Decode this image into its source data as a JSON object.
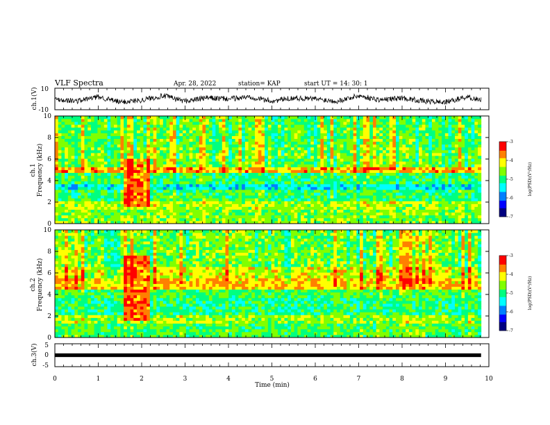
{
  "header": {
    "title": "VLF Spectra",
    "date": "Apr. 28, 2022",
    "station": "station= KAP",
    "start_ut": "start  UT  =   14: 30: 1"
  },
  "colormap": [
    "#000080",
    "#0000ff",
    "#0080ff",
    "#00ffff",
    "#00ff80",
    "#80ff00",
    "#ffff00",
    "#ff8000",
    "#ff0000",
    "#ffffff"
  ],
  "chart_data": [
    {
      "type": "line",
      "id": "ch1-waveform",
      "ylabel": "ch.1(V)",
      "ylim": [
        -10,
        10
      ],
      "yticks": [
        "10",
        "-10"
      ],
      "xlim": [
        0,
        10
      ],
      "x": [
        0,
        0.5,
        1,
        1.5,
        2,
        2.5,
        3,
        3.5,
        4,
        4.5,
        5,
        5.5,
        6,
        6.5,
        7,
        7.5,
        8,
        8.5,
        9,
        9.5,
        9.82
      ],
      "y": [
        0,
        -2,
        2,
        -3,
        -1,
        3,
        -2,
        1,
        0,
        2,
        -2,
        1,
        0,
        -2,
        3,
        -1,
        1,
        -2,
        -3,
        2,
        -1
      ],
      "color": "#000000"
    },
    {
      "type": "heatmap",
      "id": "ch1-spectrogram",
      "ylabel": "Frequency (kHz)",
      "channel": "ch.1",
      "ylim": [
        0,
        10
      ],
      "yticks": [
        "0",
        "2",
        "4",
        "6",
        "8",
        "10"
      ],
      "xlim": [
        0,
        10
      ],
      "data_xmax": 9.82,
      "bands": [
        {
          "from": 0,
          "to": 1.2,
          "level": -4.6
        },
        {
          "from": 1.2,
          "to": 2.2,
          "level": -4.4
        },
        {
          "from": 2.2,
          "to": 3.1,
          "level": -4.9
        },
        {
          "from": 3.1,
          "to": 3.6,
          "level": -5.4
        },
        {
          "from": 3.6,
          "to": 4.7,
          "level": -4.9
        },
        {
          "from": 4.7,
          "to": 5.3,
          "level": -3.8
        },
        {
          "from": 5.3,
          "to": 7,
          "level": -4.6
        },
        {
          "from": 7,
          "to": 10,
          "level": -4.7
        }
      ],
      "events": [
        {
          "t0": 1.55,
          "t1": 2.18,
          "f0": 1.6,
          "f1": 6.0,
          "level": -3.6
        }
      ],
      "colorbar": {
        "label": "log(PSD)(V²/Hz)",
        "range": [
          -7,
          -3
        ],
        "ticks": [
          "-3",
          "-4",
          "-5",
          "-6",
          "-7"
        ]
      }
    },
    {
      "type": "heatmap",
      "id": "ch2-spectrogram",
      "ylabel": "Frequency (kHz)",
      "channel": "ch.2",
      "ylim": [
        0,
        10
      ],
      "yticks": [
        "0",
        "2",
        "4",
        "6",
        "8",
        "10"
      ],
      "xlim": [
        0,
        10
      ],
      "data_xmax": 9.82,
      "bands": [
        {
          "from": 0,
          "to": 1.3,
          "level": -4.8
        },
        {
          "from": 1.3,
          "to": 2.2,
          "level": -4.5
        },
        {
          "from": 2.2,
          "to": 3.6,
          "level": -5.0
        },
        {
          "from": 3.6,
          "to": 4.6,
          "level": -4.8
        },
        {
          "from": 4.6,
          "to": 5.5,
          "level": -3.9
        },
        {
          "from": 5.5,
          "to": 6.6,
          "level": -4.2
        },
        {
          "from": 6.6,
          "to": 10,
          "level": -4.6
        }
      ],
      "events": [
        {
          "t0": 1.55,
          "t1": 2.18,
          "f0": 1.6,
          "f1": 7.5,
          "level": -3.6
        }
      ],
      "colorbar": {
        "label": "log(PSD)(V²/Hz)",
        "range": [
          -7,
          -3
        ],
        "ticks": [
          "-3",
          "-4",
          "-5",
          "-6",
          "-7"
        ]
      }
    },
    {
      "type": "line",
      "id": "ch3-waveform",
      "ylabel": "ch.3(V)",
      "ylim": [
        -5,
        5
      ],
      "yticks": [
        "5",
        "0",
        "-5"
      ],
      "xlim": [
        0,
        10
      ],
      "band": [
        -0.8,
        0.8
      ],
      "data_xmax": 9.82,
      "xlabel": "Time (min)",
      "xticks": [
        "0",
        "1",
        "2",
        "3",
        "4",
        "5",
        "6",
        "7",
        "8",
        "9",
        "10"
      ]
    }
  ]
}
